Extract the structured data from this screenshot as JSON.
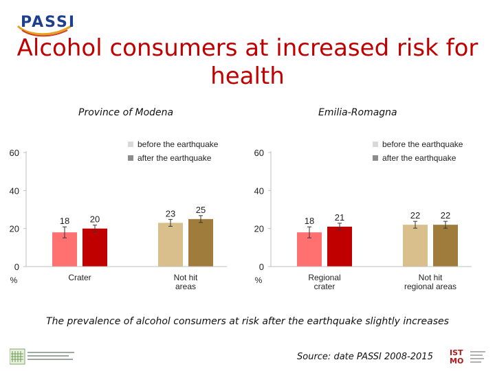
{
  "logo": {
    "text": "PASSI"
  },
  "title": "Alcohol consumers at increased risk for health",
  "footer": {
    "caption": "The prevalence of alcohol consumers at risk after the earthquake slightly increases",
    "source": "Source: date PASSI 2008-2015",
    "right_logo_text": "IST MO"
  },
  "colors": {
    "title": "#c00000",
    "crater_before": "#ff7070",
    "crater_after": "#c00000",
    "nothit_before": "#d8bf8c",
    "nothit_after": "#a07c3c",
    "legend_before": "#d9d9d9",
    "legend_after": "#8c8c8c"
  },
  "chart_data": [
    {
      "type": "bar",
      "title": "Province of Modena",
      "ylabel": "%",
      "ylim": [
        0,
        60
      ],
      "yticks": [
        0,
        20,
        40,
        60
      ],
      "legend": [
        "before the earthquake",
        "after the earthquake"
      ],
      "legend_position": "top-right",
      "groups": [
        {
          "label": [
            "Crater"
          ],
          "before": 18,
          "after": 20
        },
        {
          "label": [
            "Not hit",
            "areas"
          ],
          "before": 23,
          "after": 25
        }
      ]
    },
    {
      "type": "bar",
      "title": "Emilia-Romagna",
      "ylabel": "%",
      "ylim": [
        0,
        60
      ],
      "yticks": [
        0,
        20,
        40,
        60
      ],
      "legend": [
        "before the earthquake",
        "after the earthquake"
      ],
      "legend_position": "top-right",
      "groups": [
        {
          "label": [
            "Regional",
            "crater"
          ],
          "before": 18,
          "after": 21
        },
        {
          "label": [
            "Not hit",
            "regional areas"
          ],
          "before": 22,
          "after": 22
        }
      ]
    }
  ]
}
